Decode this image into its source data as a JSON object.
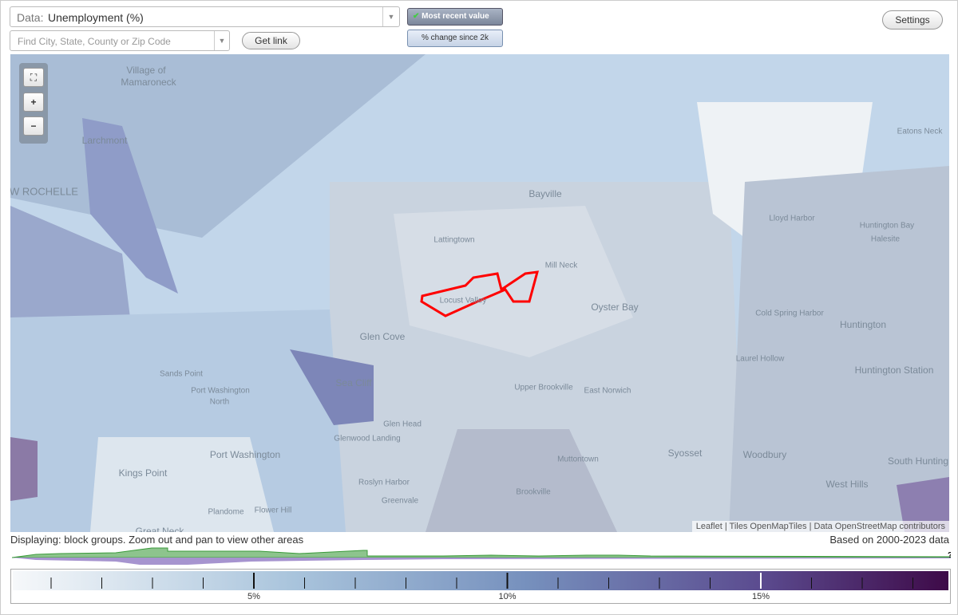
{
  "controls": {
    "data_label": "Data:",
    "data_value": "Unemployment (%)",
    "search_placeholder": "Find City, State, County or Zip Code",
    "get_link": "Get link",
    "most_recent": "Most recent value",
    "pct_change": "% change since 2k",
    "settings": "Settings"
  },
  "map": {
    "labels": [
      "Village of",
      "Mamaroneck",
      "Larchmont",
      "W ROCHELLE",
      "Bayville",
      "Lattingtown",
      "Mill Neck",
      "Locust Valley",
      "Oyster Bay",
      "Glen Cove",
      "Sea Cliff",
      "Sands Point",
      "Port Washington",
      "North",
      "Port Washington",
      "Kings Point",
      "Glen Head",
      "Glenwood Landing",
      "Roslyn Harbor",
      "Greenvale",
      "Flower Hill",
      "Plandome",
      "Great Neck",
      "Upper Brookville",
      "East Norwich",
      "Muttontown",
      "Brookville",
      "Syosset",
      "Woodbury",
      "West Hills",
      "South Hunting",
      "Huntington Station",
      "Huntington",
      "Laurel Hollow",
      "Cold Spring Harbor",
      "Lloyd Harbor",
      "Huntington Bay",
      "Halesite",
      "Eatons Neck"
    ],
    "attribution": "Leaflet | Tiles OpenMapTiles | Data OpenStreetMap contributors"
  },
  "status": {
    "displaying": "Displaying: block groups. Zoom out and pan to view other areas",
    "based_on": "Based on 2000-2023 data"
  },
  "legend": {
    "ticks": [
      "5%",
      "10%",
      "15%"
    ],
    "unknown": "?"
  }
}
